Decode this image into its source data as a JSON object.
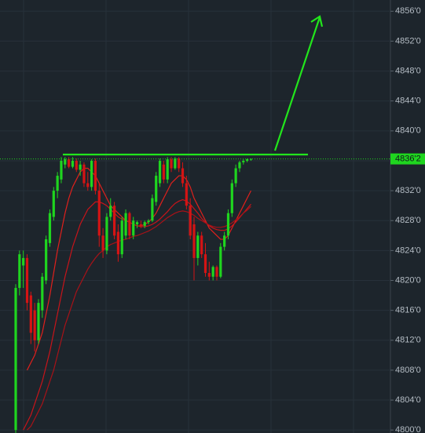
{
  "chart_data": {
    "type": "candlestick",
    "up_color": "#1fd51f",
    "down_color": "#d41414",
    "ylim": [
      4799.6,
      4857.5
    ],
    "yticks": [
      {
        "value": 4800,
        "label": "4800'0"
      },
      {
        "value": 4804,
        "label": "4804'0"
      },
      {
        "value": 4808,
        "label": "4808'0"
      },
      {
        "value": 4812,
        "label": "4812'0"
      },
      {
        "value": 4816,
        "label": "4816'0"
      },
      {
        "value": 4820,
        "label": "4820'0"
      },
      {
        "value": 4824,
        "label": "4824'0"
      },
      {
        "value": 4828,
        "label": "4828'0"
      },
      {
        "value": 4832,
        "label": "4832'0"
      },
      {
        "value": 4836,
        "label": "4836'0"
      },
      {
        "value": 4840,
        "label": "4840'0"
      },
      {
        "value": 4844,
        "label": "4844'0"
      },
      {
        "value": 4848,
        "label": "4848'0"
      },
      {
        "value": 4852,
        "label": "4852'0"
      },
      {
        "value": 4856,
        "label": "4856'0"
      }
    ],
    "grid": true,
    "last_price": {
      "value": 4836.25,
      "label": "4836'2"
    },
    "open": [
      4800,
      4819,
      4822,
      4823,
      4818,
      4816,
      4812,
      4816,
      4820,
      4825,
      4828.5,
      4832,
      4833.5,
      4835.5,
      4836.2,
      4835.2,
      4836,
      4834.8,
      4835.5,
      4833,
      4832.5,
      4836,
      4832,
      4826,
      4824,
      4828.5,
      4830,
      4826.5,
      4823.5,
      4826,
      4829,
      4826,
      4827.5,
      4827.5,
      4827.3,
      4827.8,
      4828,
      4830.5,
      4833,
      4835.5,
      4833.5,
      4836.2,
      4835,
      4836.3,
      4835,
      4833,
      4830,
      4827.5,
      4823,
      4826,
      4823.5,
      4821,
      4820.5,
      4821.8,
      4820.5,
      4824.5,
      4826,
      4829,
      4833,
      4835,
      4835.8,
      4836,
      4836.2
    ],
    "high": [
      4819.5,
      4824,
      4824,
      4823.5,
      4818.5,
      4817,
      4817.5,
      4821,
      4826,
      4829.5,
      4832.5,
      4834.5,
      4836.5,
      4836.5,
      4836.5,
      4836.5,
      4836.3,
      4836,
      4835.8,
      4834.5,
      4836.2,
      4836.3,
      4833,
      4827,
      4829,
      4831,
      4830.5,
      4827.5,
      4828.5,
      4829.5,
      4829.2,
      4828.5,
      4828,
      4828,
      4828,
      4828.2,
      4831.5,
      4834.5,
      4836.3,
      4836,
      4836.5,
      4836.5,
      4836.5,
      4836.5,
      4835.8,
      4834,
      4831,
      4828.5,
      4826.5,
      4826.5,
      4825,
      4822.5,
      4822,
      4822,
      4825,
      4826.5,
      4829.5,
      4833.5,
      4835.5,
      4836,
      4836.2,
      4836.3,
      4836.3
    ],
    "low": [
      4799.5,
      4818,
      4819,
      4816,
      4811.5,
      4810.5,
      4811.5,
      4815,
      4819.5,
      4824.5,
      4828,
      4831,
      4833,
      4835,
      4835,
      4835,
      4834.5,
      4834,
      4832.5,
      4832,
      4832,
      4831.5,
      4824.5,
      4823,
      4823.5,
      4828,
      4825.5,
      4822.5,
      4823,
      4825.5,
      4825.5,
      4825.5,
      4827,
      4827,
      4827,
      4827.5,
      4827.8,
      4830,
      4832.5,
      4833,
      4833,
      4834.5,
      4834.8,
      4834.5,
      4832.5,
      4829.5,
      4825.5,
      4820,
      4822,
      4823,
      4820.5,
      4820,
      4820,
      4820,
      4820.3,
      4824,
      4825.5,
      4828.5,
      4832.5,
      4834.5,
      4835.5,
      4835.8,
      4836
    ],
    "close": [
      4819,
      4823.5,
      4823,
      4817,
      4813,
      4812,
      4817,
      4820.5,
      4825.5,
      4829,
      4832,
      4834,
      4836,
      4836.2,
      4835.2,
      4836,
      4834.8,
      4835.5,
      4833,
      4832.5,
      4836,
      4832,
      4826,
      4824,
      4828.5,
      4830,
      4826,
      4823.5,
      4828,
      4829,
      4826,
      4828,
      4827.8,
      4827.3,
      4827.8,
      4828,
      4831,
      4834,
      4836,
      4833.5,
      4836.2,
      4835,
      4836.3,
      4835,
      4833,
      4830,
      4826,
      4823,
      4826,
      4823.5,
      4821,
      4820.5,
      4821.8,
      4820.5,
      4824.5,
      4826,
      4829,
      4833,
      4835,
      4835.8,
      4836,
      4836.2,
      4836.25
    ],
    "series": [
      {
        "color": "#e0201c",
        "values": [
          null,
          null,
          null,
          4808,
          4809,
          4810,
          4811.5,
          4813,
          4815.5,
          4818,
          4821,
          4824,
          4826.5,
          4829,
          4831,
          4832.5,
          4833.5,
          4834.5,
          4835,
          4835,
          4834.5,
          4834,
          4833,
          4832,
          4831,
          4830,
          4829.5,
          4829,
          4828.5,
          4828,
          4827.8,
          4827.5,
          4827.3,
          4827.3,
          4827.5,
          4827.8,
          4828.3,
          4829,
          4830,
          4831,
          4832,
          4833,
          4833.5,
          4834,
          4834,
          4833.5,
          4832.5,
          4831,
          4830,
          4829,
          4828,
          4827,
          4826.5,
          4826,
          4825.5,
          4825.5,
          4826,
          4827,
          4828,
          4829,
          4830,
          4831,
          4832
        ]
      },
      {
        "color": "#c8141a",
        "values": [
          null,
          null,
          4800,
          4801,
          4802,
          4803.5,
          4805,
          4806.5,
          4808.5,
          4810.5,
          4813,
          4815.5,
          4818,
          4820.5,
          4822.5,
          4824.5,
          4826,
          4827.5,
          4828.5,
          4829.5,
          4830,
          4830.5,
          4830.5,
          4830.3,
          4830,
          4829.5,
          4829,
          4828.5,
          4828.2,
          4828,
          4827.8,
          4827.5,
          4827.3,
          4827.2,
          4827.2,
          4827.3,
          4827.5,
          4827.8,
          4828.2,
          4828.7,
          4829.2,
          4829.8,
          4830.3,
          4830.6,
          4830.8,
          4830.6,
          4830.2,
          4829.6,
          4829,
          4828.3,
          4827.8,
          4827.3,
          4827,
          4826.8,
          4826.7,
          4826.7,
          4826.9,
          4827.3,
          4827.8,
          4828.4,
          4829,
          4829.6,
          4830.2
        ]
      },
      {
        "color": "#a81218",
        "values": [
          null,
          null,
          null,
          4800,
          4800.5,
          4801.5,
          4802.5,
          4803.5,
          4805,
          4806.5,
          4808,
          4810,
          4812,
          4814,
          4815.5,
          4817,
          4818.5,
          4819.5,
          4820.5,
          4821.5,
          4822.3,
          4823,
          4823.6,
          4824,
          4824.5,
          4824.8,
          4825,
          4825.2,
          4825.4,
          4825.5,
          4825.7,
          4825.9,
          4826,
          4826.2,
          4826.4,
          4826.6,
          4826.9,
          4827.2,
          4827.6,
          4828,
          4828.4,
          4828.7,
          4829,
          4829.2,
          4829.3,
          4829.2,
          4829,
          4828.7,
          4828.3,
          4828,
          4827.7,
          4827.4,
          4827.2,
          4827.1,
          4827.1,
          4827.2,
          4827.4,
          4827.7,
          4828.1,
          4828.5,
          4829,
          4829.4,
          4829.9
        ]
      }
    ]
  }
}
